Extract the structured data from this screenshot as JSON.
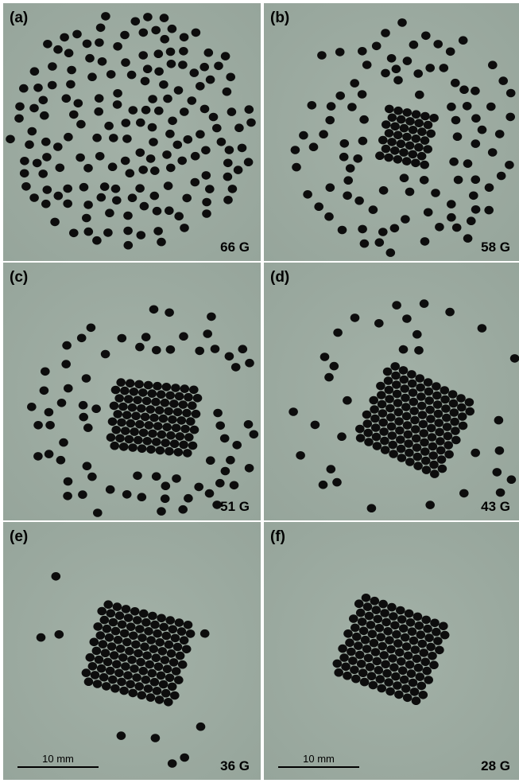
{
  "panels": [
    {
      "label": "(a)",
      "field": "66 G"
    },
    {
      "label": "(b)",
      "field": "58 G"
    },
    {
      "label": "(c)",
      "field": "51 G"
    },
    {
      "label": "(d)",
      "field": "43 G"
    },
    {
      "label": "(e)",
      "field": "36 G",
      "scale_bar": "10 mm"
    },
    {
      "label": "(f)",
      "field": "28 G",
      "scale_bar": "10 mm"
    }
  ]
}
